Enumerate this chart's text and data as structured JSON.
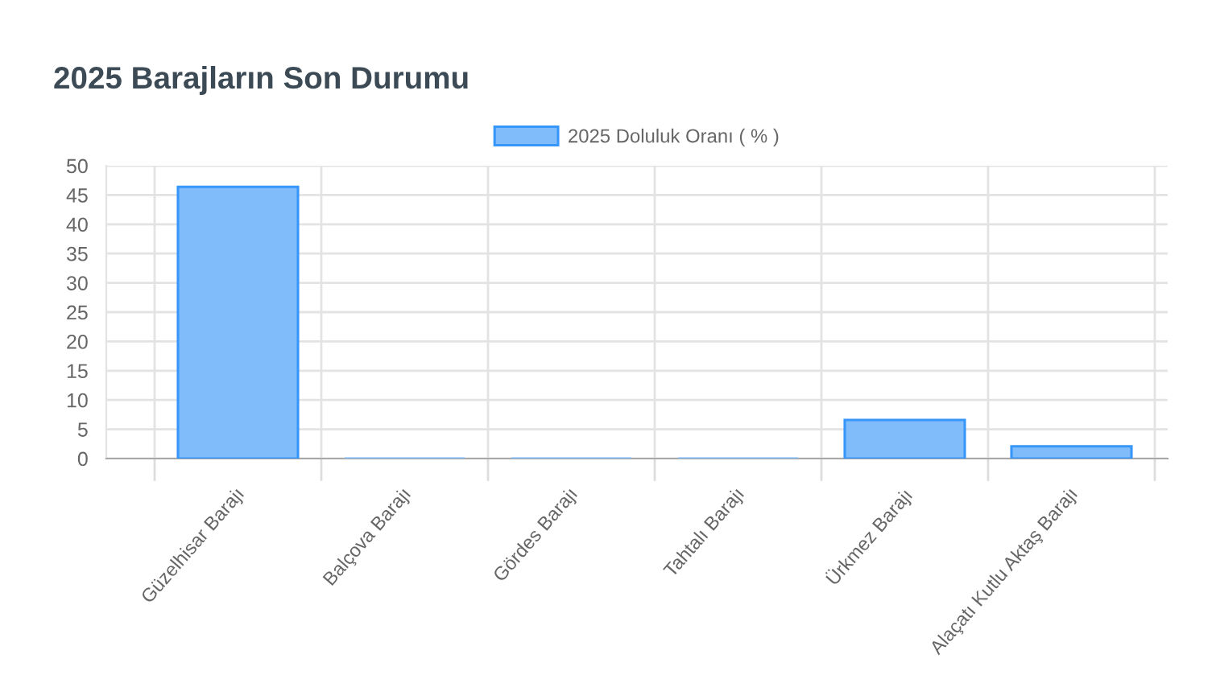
{
  "chart_data": {
    "type": "bar",
    "title": "2025 Barajların Son Durumu",
    "categories": [
      "Güzelhisar Barajı",
      "Balçova Barajı",
      "Gördes Barajı",
      "Tahtalı Barajı",
      "Ürkmez Barajı",
      "Alaçatı Kutlu Aktaş Barajı"
    ],
    "series": [
      {
        "name": "2025 Doluluk Oranı ( % )",
        "color": "#80bbfa",
        "values": [
          46.4,
          0,
          0,
          0,
          6.6,
          2.1
        ]
      }
    ],
    "ylim": [
      0,
      50
    ],
    "yticks": [
      0,
      5,
      10,
      15,
      20,
      25,
      30,
      35,
      40,
      45,
      50
    ],
    "grid": true,
    "legend": "top"
  }
}
